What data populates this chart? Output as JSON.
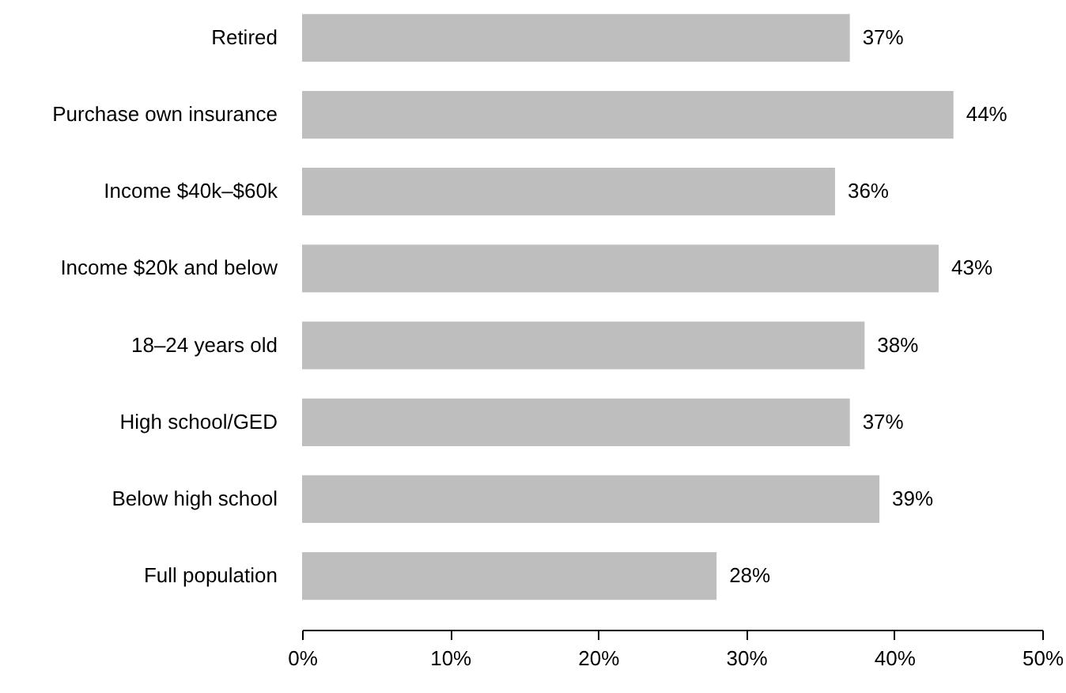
{
  "chart_data": {
    "type": "bar",
    "orientation": "horizontal",
    "categories": [
      "Retired",
      "Purchase own insurance",
      "Income $40k–$60k",
      "Income $20k and below",
      "18–24 years old",
      "High school/GED",
      "Below high school",
      "Full population"
    ],
    "values": [
      37,
      44,
      36,
      43,
      38,
      37,
      39,
      28
    ],
    "value_labels": [
      "37%",
      "44%",
      "36%",
      "43%",
      "38%",
      "37%",
      "39%",
      "28%"
    ],
    "color": "#bebebe",
    "xlim": [
      0,
      50
    ],
    "xticks": [
      {
        "value": 0,
        "label": "0%"
      },
      {
        "value": 10,
        "label": "10%"
      },
      {
        "value": 20,
        "label": "20%"
      },
      {
        "value": 30,
        "label": "30%"
      },
      {
        "value": 40,
        "label": "40%"
      },
      {
        "value": 50,
        "label": "50%"
      }
    ],
    "grid": false
  }
}
